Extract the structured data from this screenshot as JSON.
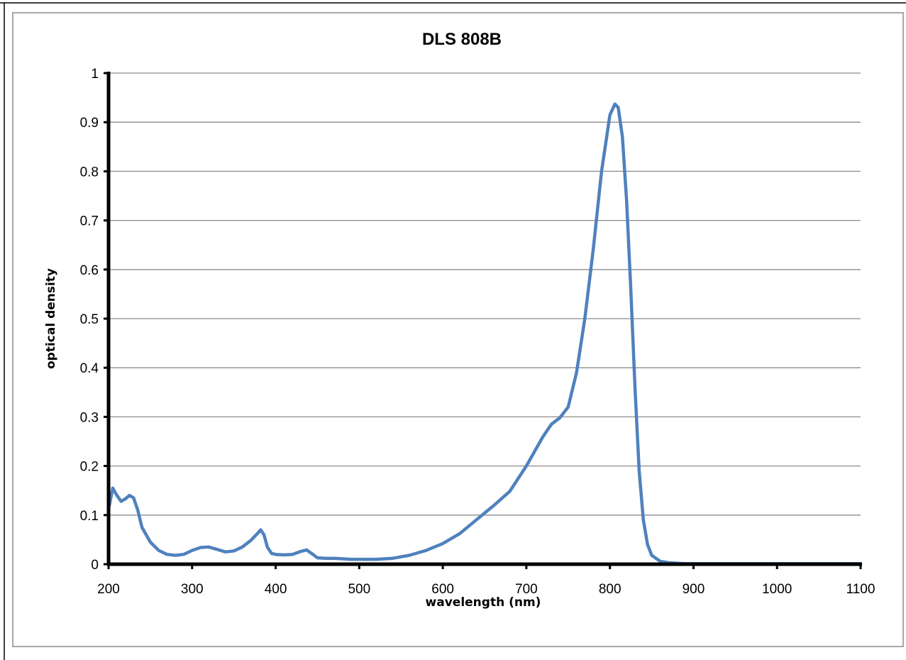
{
  "chart_data": {
    "type": "line",
    "title": "DLS 808B",
    "xlabel": "wavelength (nm)",
    "ylabel": "optical density",
    "xlim": [
      200,
      1100
    ],
    "ylim": [
      0,
      1
    ],
    "x_ticks": [
      "200",
      "300",
      "400",
      "500",
      "600",
      "700",
      "800",
      "900",
      "1000",
      "1100"
    ],
    "y_ticks": [
      "0",
      "0.1",
      "0.2",
      "0.3",
      "0.4",
      "0.5",
      "0.6",
      "0.7",
      "0.8",
      "0.9",
      "1"
    ],
    "grid": "horizontal",
    "legend": "none",
    "series": [
      {
        "color": "#4f81bd",
        "x": [
          201,
          205,
          210,
          215,
          220,
          225,
          230,
          235,
          240,
          250,
          260,
          270,
          280,
          290,
          300,
          310,
          320,
          330,
          340,
          350,
          360,
          370,
          378,
          382,
          386,
          390,
          395,
          400,
          410,
          420,
          430,
          437,
          443,
          450,
          460,
          470,
          480,
          490,
          500,
          520,
          540,
          560,
          580,
          600,
          620,
          640,
          660,
          680,
          700,
          720,
          730,
          740,
          750,
          760,
          770,
          780,
          790,
          800,
          806,
          810,
          815,
          820,
          825,
          830,
          835,
          840,
          845,
          850,
          860,
          870,
          880,
          890,
          900,
          950,
          1000,
          1050,
          1100
        ],
        "y": [
          0.12,
          0.155,
          0.14,
          0.128,
          0.133,
          0.14,
          0.135,
          0.11,
          0.075,
          0.045,
          0.028,
          0.02,
          0.018,
          0.02,
          0.028,
          0.034,
          0.035,
          0.03,
          0.025,
          0.027,
          0.035,
          0.048,
          0.062,
          0.07,
          0.06,
          0.035,
          0.022,
          0.02,
          0.019,
          0.02,
          0.026,
          0.029,
          0.022,
          0.013,
          0.012,
          0.012,
          0.011,
          0.01,
          0.01,
          0.01,
          0.012,
          0.018,
          0.028,
          0.042,
          0.062,
          0.09,
          0.118,
          0.148,
          0.2,
          0.26,
          0.285,
          0.298,
          0.32,
          0.39,
          0.5,
          0.64,
          0.8,
          0.915,
          0.937,
          0.93,
          0.87,
          0.74,
          0.56,
          0.36,
          0.19,
          0.09,
          0.04,
          0.018,
          0.006,
          0.003,
          0.002,
          0.001,
          0.001,
          0.001,
          0.001,
          0.001,
          0.001
        ]
      }
    ]
  },
  "colors": {
    "series": "#4f81bd",
    "grid": "#8c8c8c",
    "axis": "#000000"
  }
}
